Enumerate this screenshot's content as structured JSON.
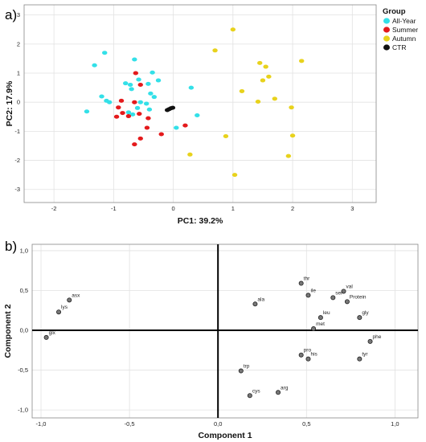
{
  "panels": {
    "a_label": "a)",
    "b_label": "b)"
  },
  "chart_data": [
    {
      "type": "scatter",
      "title": "",
      "xlabel": "PC1: 39.2%",
      "ylabel": "PC2: 17.9%",
      "xlim": [
        -2.5,
        3.4
      ],
      "ylim": [
        -3.45,
        3.35
      ],
      "xticks": [
        "-2",
        "-1",
        "0",
        "1",
        "2",
        "3"
      ],
      "yticks": [
        "3",
        "2",
        "1",
        "0",
        "-1",
        "-2",
        "-3"
      ],
      "grid": true,
      "legend": {
        "title": "Group",
        "position": "top-right"
      },
      "series": [
        {
          "name": "All-Year",
          "color": "#33e0e8",
          "points": [
            [
              -1.15,
              1.7
            ],
            [
              -1.32,
              1.27
            ],
            [
              -1.45,
              -0.32
            ],
            [
              -1.2,
              0.2
            ],
            [
              -1.12,
              0.05
            ],
            [
              -1.07,
              0.0
            ],
            [
              -0.8,
              0.65
            ],
            [
              -0.72,
              0.6
            ],
            [
              -0.65,
              1.47
            ],
            [
              -0.7,
              0.45
            ],
            [
              -0.58,
              0.78
            ],
            [
              -0.35,
              1.02
            ],
            [
              -0.25,
              0.75
            ],
            [
              -0.42,
              0.63
            ],
            [
              -0.38,
              0.3
            ],
            [
              -0.32,
              0.18
            ],
            [
              -0.45,
              -0.05
            ],
            [
              -0.55,
              0.0
            ],
            [
              -0.75,
              -0.35
            ],
            [
              -0.68,
              -0.42
            ],
            [
              -0.6,
              -0.2
            ],
            [
              -0.4,
              -0.25
            ],
            [
              0.05,
              -0.88
            ],
            [
              0.3,
              0.5
            ],
            [
              0.4,
              -0.45
            ]
          ]
        },
        {
          "name": "Summer",
          "color": "#e41a1c",
          "points": [
            [
              -0.63,
              1.0
            ],
            [
              -0.55,
              0.6
            ],
            [
              -0.65,
              0.0
            ],
            [
              -0.87,
              0.05
            ],
            [
              -0.92,
              -0.18
            ],
            [
              -0.95,
              -0.5
            ],
            [
              -0.85,
              -0.37
            ],
            [
              -0.75,
              -0.48
            ],
            [
              -0.57,
              -0.4
            ],
            [
              -0.44,
              -0.88
            ],
            [
              -0.42,
              -0.55
            ],
            [
              -0.55,
              -1.25
            ],
            [
              -0.65,
              -1.45
            ],
            [
              -0.2,
              -1.1
            ],
            [
              0.2,
              -0.8
            ]
          ]
        },
        {
          "name": "Autumn",
          "color": "#e8d21c",
          "points": [
            [
              1.0,
              2.5
            ],
            [
              0.7,
              1.78
            ],
            [
              1.45,
              1.35
            ],
            [
              1.55,
              1.22
            ],
            [
              1.6,
              0.88
            ],
            [
              1.5,
              0.75
            ],
            [
              2.15,
              1.42
            ],
            [
              1.15,
              0.38
            ],
            [
              1.42,
              0.02
            ],
            [
              1.7,
              0.12
            ],
            [
              1.98,
              -0.18
            ],
            [
              0.88,
              -1.17
            ],
            [
              0.28,
              -1.8
            ],
            [
              2.0,
              -1.15
            ],
            [
              1.93,
              -1.85
            ],
            [
              1.03,
              -2.5
            ]
          ]
        },
        {
          "name": "CTR",
          "color": "#111111",
          "points": [
            [
              -0.1,
              -0.27
            ],
            [
              -0.07,
              -0.24
            ],
            [
              -0.04,
              -0.21
            ],
            [
              -0.01,
              -0.19
            ]
          ]
        }
      ]
    },
    {
      "type": "scatter",
      "title": "",
      "xlabel": "Component 1",
      "ylabel": "Component 2",
      "xlim": [
        -1.05,
        1.13
      ],
      "ylim": [
        -1.1,
        1.08
      ],
      "xticks": [
        "-1,0",
        "-0,5",
        "0,0",
        "0,5",
        "1,0"
      ],
      "yticks": [
        "1,0",
        "0,5",
        "0,0",
        "-0,5",
        "-1,0"
      ],
      "grid": true,
      "points": [
        {
          "label": "asx",
          "x": -0.84,
          "y": 0.38
        },
        {
          "label": "lys",
          "x": -0.9,
          "y": 0.23
        },
        {
          "label": "glx",
          "x": -0.97,
          "y": -0.09
        },
        {
          "label": "ala",
          "x": 0.21,
          "y": 0.33
        },
        {
          "label": "thr",
          "x": 0.47,
          "y": 0.59
        },
        {
          "label": "ile",
          "x": 0.51,
          "y": 0.44
        },
        {
          "label": "val",
          "x": 0.71,
          "y": 0.49
        },
        {
          "label": "ser",
          "x": 0.65,
          "y": 0.41
        },
        {
          "label": "Protein",
          "x": 0.73,
          "y": 0.36
        },
        {
          "label": "leu",
          "x": 0.58,
          "y": 0.16
        },
        {
          "label": "gly",
          "x": 0.8,
          "y": 0.16
        },
        {
          "label": "met",
          "x": 0.54,
          "y": 0.02
        },
        {
          "label": "phe",
          "x": 0.86,
          "y": -0.14
        },
        {
          "label": "pro",
          "x": 0.47,
          "y": -0.31
        },
        {
          "label": "his",
          "x": 0.51,
          "y": -0.36
        },
        {
          "label": "tyr",
          "x": 0.8,
          "y": -0.36
        },
        {
          "label": "trp",
          "x": 0.13,
          "y": -0.51
        },
        {
          "label": "arg",
          "x": 0.34,
          "y": -0.78
        },
        {
          "label": "cys",
          "x": 0.18,
          "y": -0.82
        }
      ]
    }
  ]
}
